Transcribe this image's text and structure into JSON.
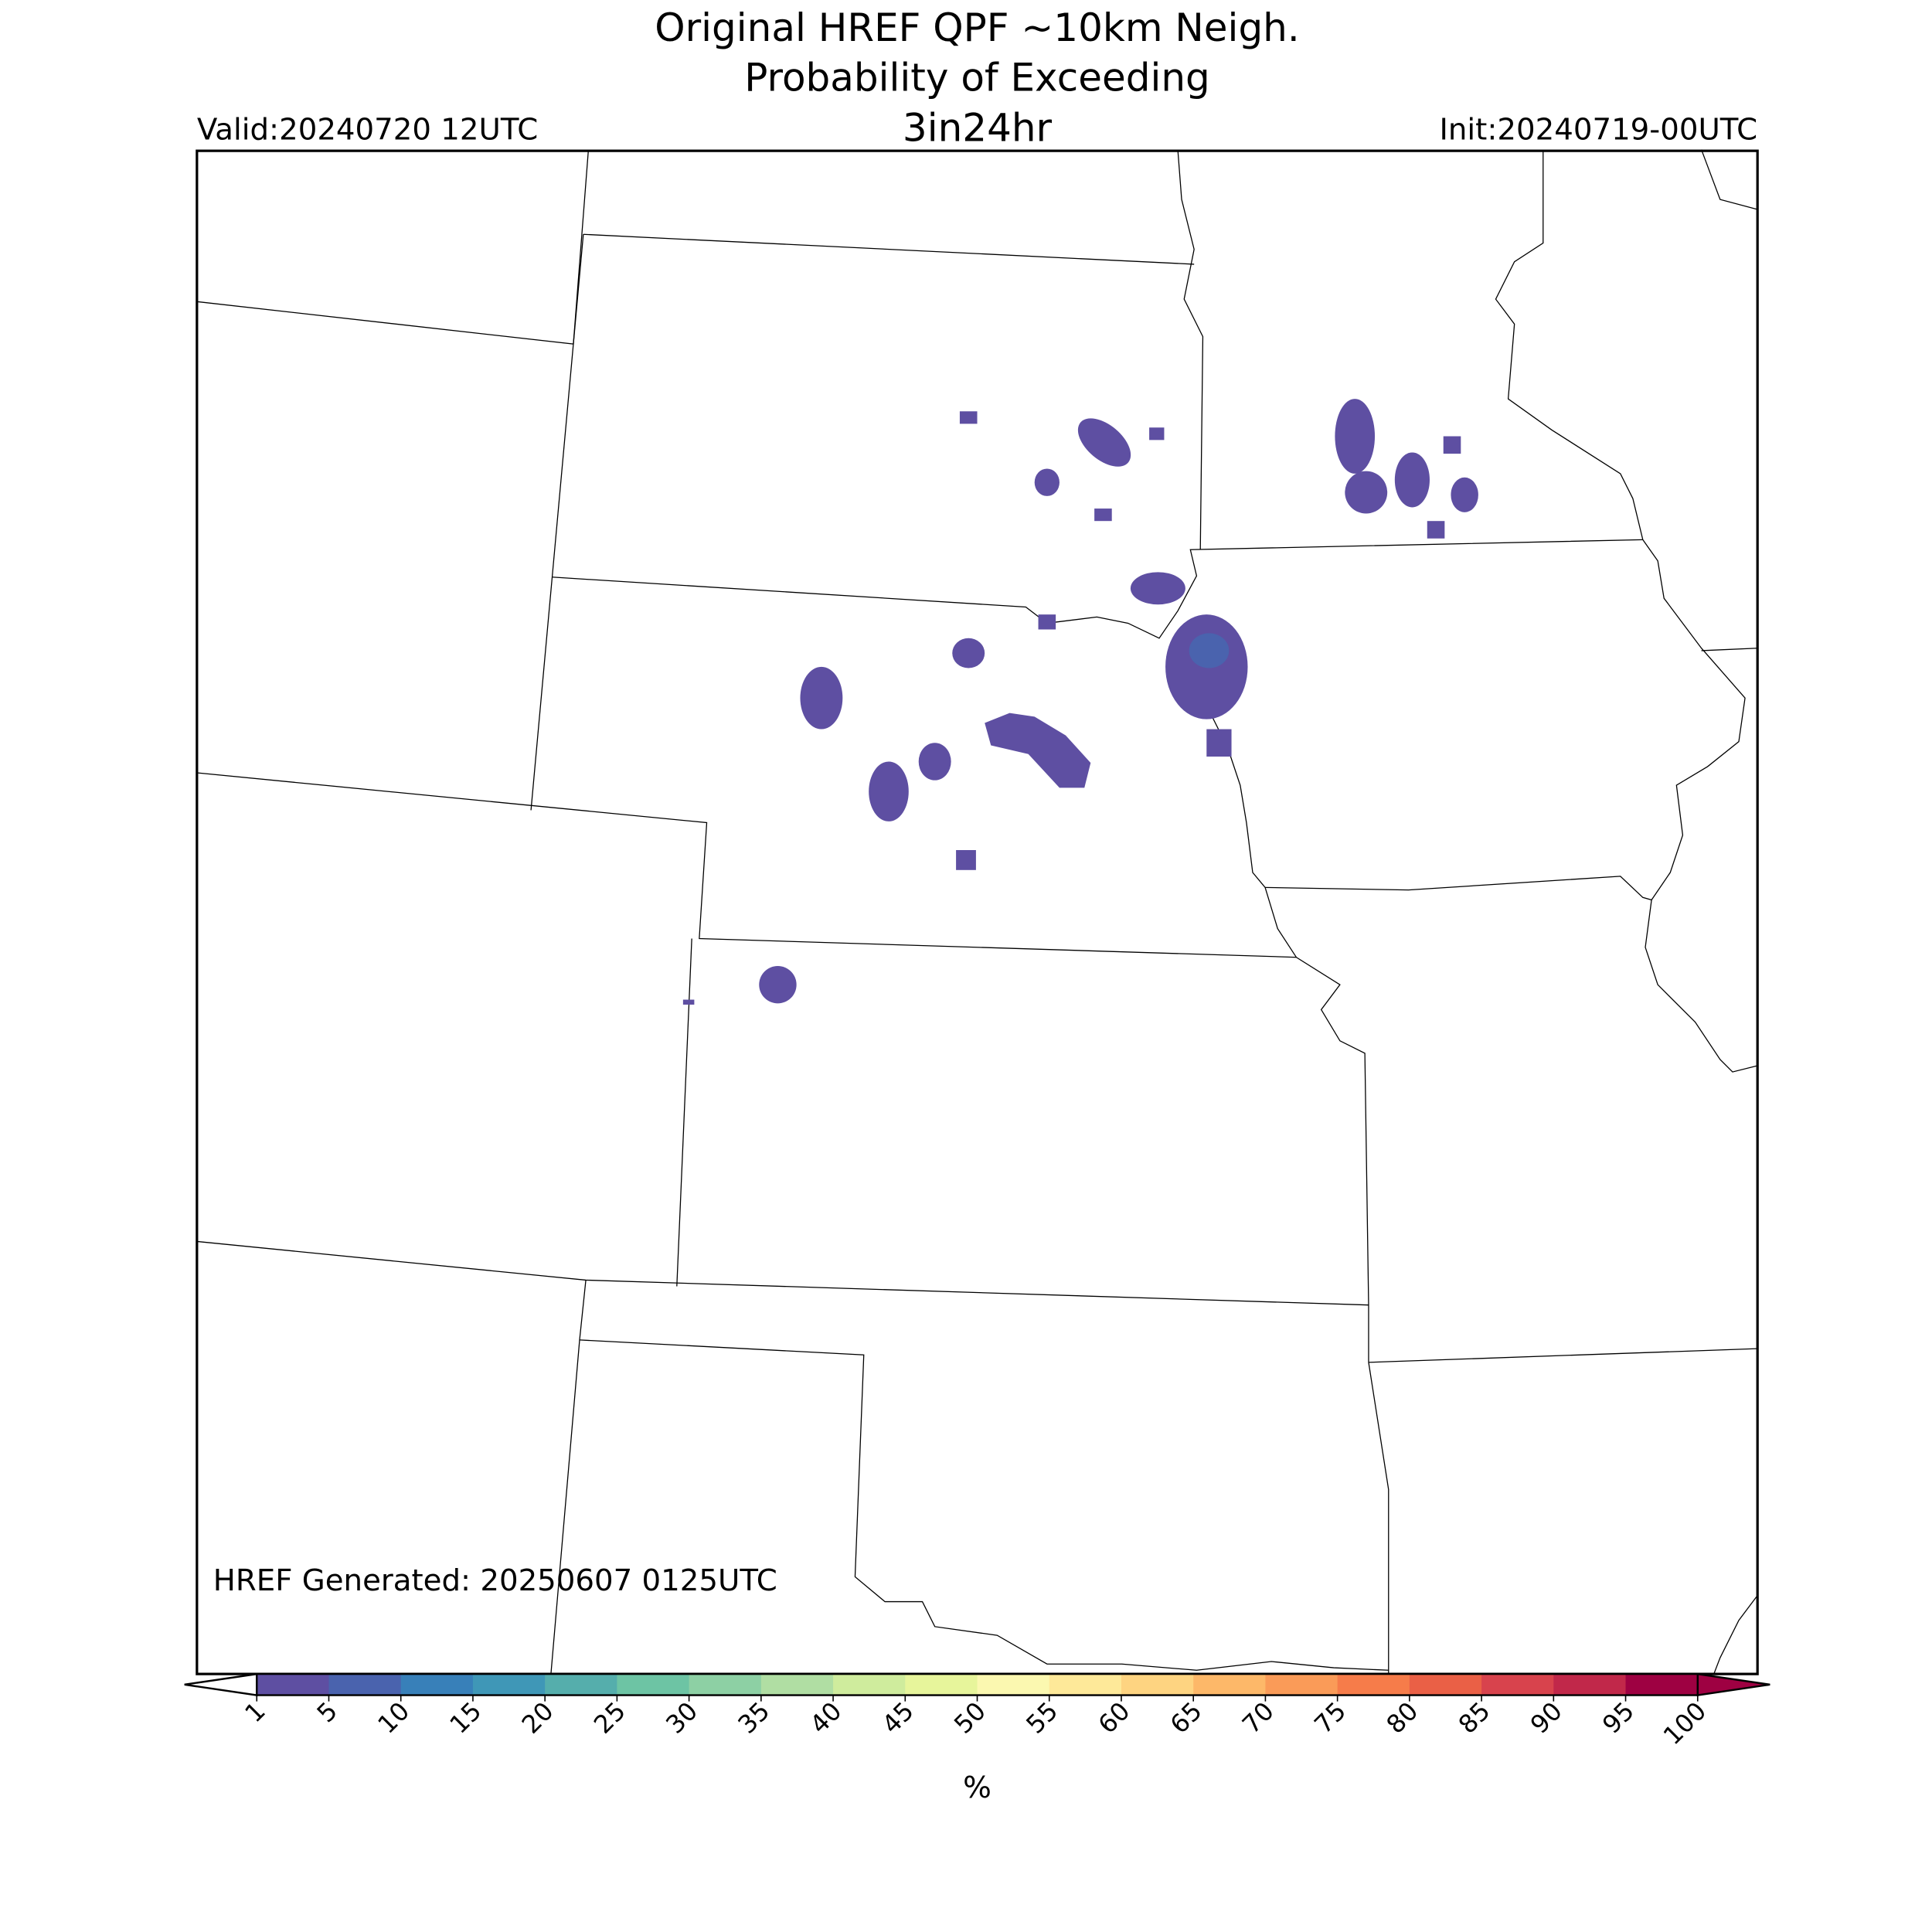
{
  "header": {
    "title": [
      "Original HREF QPF ~10km Neigh.",
      "Probability of Exceeding",
      "3in24hr"
    ],
    "valid": "Valid:20240720 12UTC",
    "init": "Init:20240719-00UTC"
  },
  "footer_note": "HREF Generated: 20250607 0125UTC",
  "colorbar": {
    "ticks": [
      1,
      5,
      10,
      15,
      20,
      25,
      30,
      35,
      40,
      45,
      50,
      55,
      60,
      65,
      70,
      75,
      80,
      85,
      90,
      95,
      100
    ],
    "colors": [
      "#5e4fa2",
      "#4a63ae",
      "#3880b9",
      "#3f97b7",
      "#55aeac",
      "#6dc4a4",
      "#8dd0a4",
      "#b0dea3",
      "#cfec9d",
      "#e7f59b",
      "#fbf8b0",
      "#fee999",
      "#fed481",
      "#fdb869",
      "#fa9b58",
      "#f67c4a",
      "#ea6046",
      "#d8434d",
      "#c1284a",
      "#9e0142"
    ],
    "extend_colors": [
      "#ffffff",
      "#9e0142"
    ],
    "label": "%"
  }
}
